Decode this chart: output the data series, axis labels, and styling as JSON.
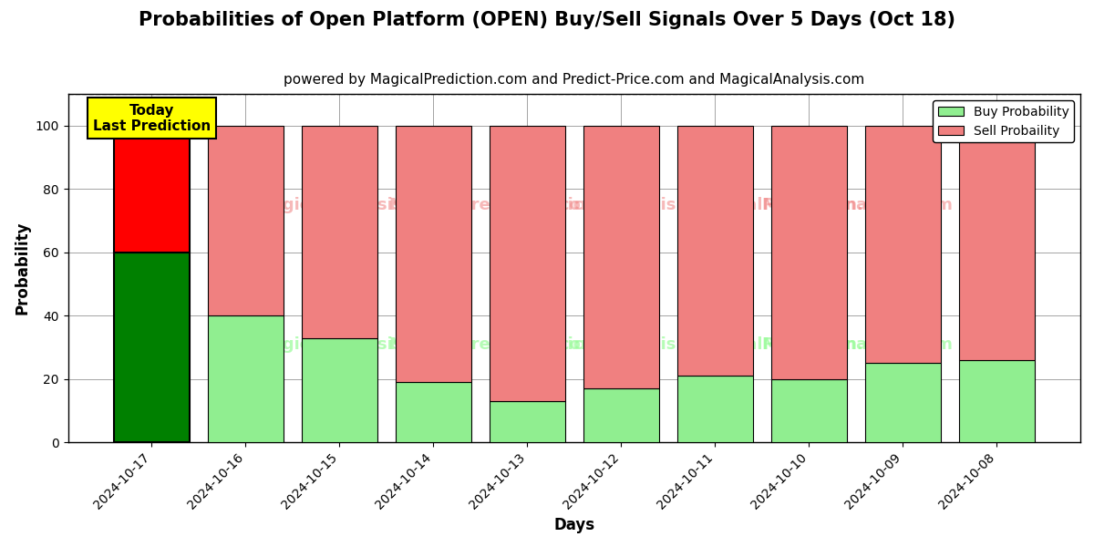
{
  "title": "Probabilities of Open Platform (OPEN) Buy/Sell Signals Over 5 Days (Oct 18)",
  "subtitle": "powered by MagicalPrediction.com and Predict-Price.com and MagicalAnalysis.com",
  "xlabel": "Days",
  "ylabel": "Probability",
  "dates": [
    "2024-10-17",
    "2024-10-16",
    "2024-10-15",
    "2024-10-14",
    "2024-10-13",
    "2024-10-12",
    "2024-10-11",
    "2024-10-10",
    "2024-10-09",
    "2024-10-08"
  ],
  "buy_probs": [
    60,
    40,
    33,
    19,
    13,
    17,
    21,
    20,
    25,
    26
  ],
  "sell_probs": [
    40,
    60,
    67,
    81,
    87,
    83,
    79,
    80,
    75,
    74
  ],
  "today_buy_color": "#008000",
  "today_sell_color": "#FF0000",
  "other_buy_color": "#90EE90",
  "other_sell_color": "#F08080",
  "today_annotation": "Today\nLast Prediction",
  "ylim": [
    0,
    110
  ],
  "dashed_line_y": 110,
  "background_color": "#ffffff",
  "legend_buy_label": "Buy Probability",
  "legend_sell_label": "Sell Probaility",
  "bar_width": 0.8,
  "title_fontsize": 15,
  "subtitle_fontsize": 11,
  "axis_label_fontsize": 12,
  "tick_fontsize": 10
}
